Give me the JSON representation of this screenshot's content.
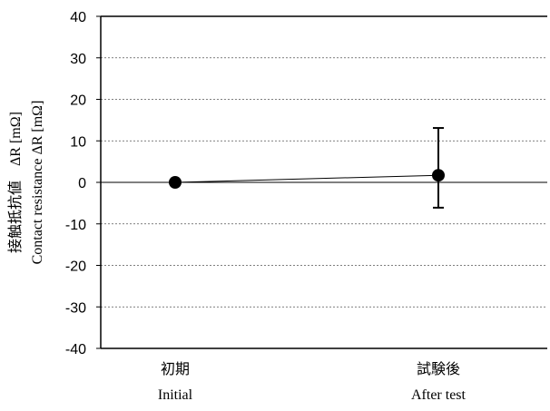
{
  "chart_data": {
    "type": "line",
    "categories": [
      {
        "label_ja": "初期",
        "label_en": "Initial"
      },
      {
        "label_ja": "試験後",
        "label_en": "After test"
      }
    ],
    "series": [
      {
        "values": [
          0,
          1.7
        ],
        "error_low": [
          0,
          -7.8
        ],
        "error_high": [
          0,
          11.4
        ],
        "color": "#000000",
        "marker": "circle"
      }
    ],
    "ylabel_line1": "接触抵抗値　ΔR [mΩ]",
    "ylabel_line2": "Contact resistance ΔR [mΩ]",
    "ylim": [
      -40,
      40
    ],
    "yticks": [
      "40",
      "30",
      "20",
      "10",
      "0",
      "-10",
      "-20",
      "-30",
      "-40"
    ],
    "grid": "horizontal-dashed",
    "zero_line": true
  }
}
